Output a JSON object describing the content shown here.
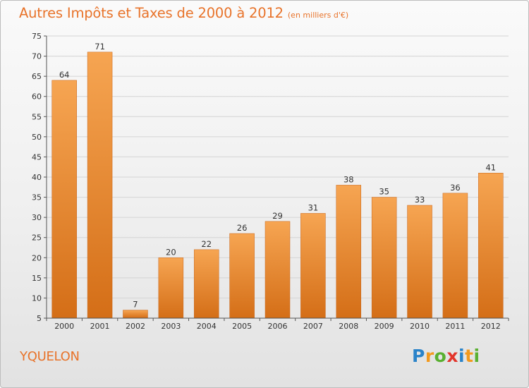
{
  "header": {
    "title": "Autres Impôts et Taxes de 2000 à 2012",
    "unit": "(en milliers d'€)"
  },
  "commune": "YQUELON",
  "logo": {
    "text": "Proxiti",
    "letters": [
      {
        "char": "P",
        "color": "#2a83c9"
      },
      {
        "char": "r",
        "color": "#f39a1e"
      },
      {
        "char": "o",
        "color": "#59b031"
      },
      {
        "char": "x",
        "color": "#e2352b"
      },
      {
        "char": "i",
        "color": "#2a83c9"
      },
      {
        "char": "t",
        "color": "#f39a1e"
      },
      {
        "char": "i",
        "color": "#59b031"
      }
    ]
  },
  "colors": {
    "bar_top": "#f6a552",
    "bar_bottom": "#d46e17",
    "bar_edge": "#c8651a",
    "grid": "#d4d4d4",
    "accent": "#e8732a"
  },
  "chart_data": {
    "type": "bar",
    "categories": [
      "2000",
      "2001",
      "2002",
      "2003",
      "2004",
      "2005",
      "2006",
      "2007",
      "2008",
      "2009",
      "2010",
      "2011",
      "2012"
    ],
    "values": [
      64,
      71,
      7,
      20,
      22,
      26,
      29,
      31,
      38,
      35,
      33,
      36,
      41
    ],
    "ylim": [
      5,
      75
    ],
    "yticks": [
      5,
      10,
      15,
      20,
      25,
      30,
      35,
      40,
      45,
      50,
      55,
      60,
      65,
      70,
      75
    ],
    "grid": true,
    "legend": "none"
  }
}
